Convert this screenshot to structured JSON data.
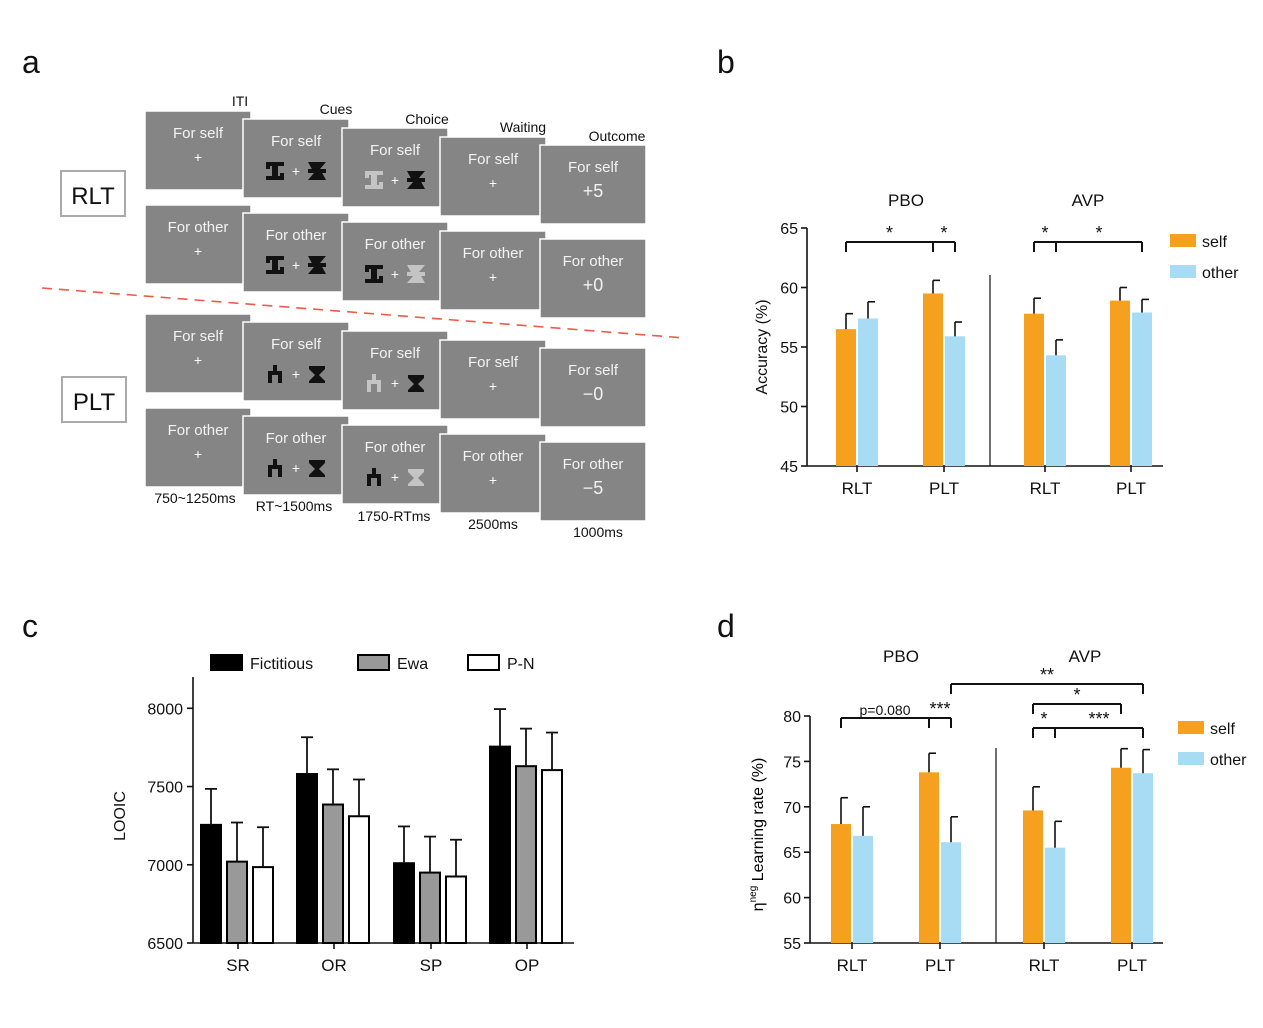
{
  "panels": {
    "a": {
      "letter": "a",
      "stage_labels": [
        "ITI",
        "Cues",
        "Choice",
        "Waiting",
        "Outcome"
      ],
      "timing_labels": [
        "750~1250ms",
        "RT~1500ms",
        "1750-RTms",
        "2500ms",
        "1000ms"
      ],
      "task_labels": [
        "RLT",
        "PLT"
      ],
      "screens": {
        "self_text": "For self",
        "other_text": "For other",
        "fixation": "+",
        "outcomes": {
          "rlt_self": "+5",
          "rlt_other": "+0",
          "plt_self": "−0",
          "plt_other": "−5"
        }
      },
      "colors": {
        "screen": "#858585",
        "text": "#f2f2f2",
        "dashed_line": "#ee5a48"
      }
    },
    "b": {
      "letter": "b"
    },
    "c": {
      "letter": "c"
    },
    "d": {
      "letter": "d"
    }
  },
  "chart_data": [
    {
      "panel": "b",
      "type": "bar",
      "groups": [
        "PBO",
        "AVP"
      ],
      "categories": [
        "RLT",
        "PLT",
        "RLT",
        "PLT"
      ],
      "series": [
        {
          "name": "self",
          "color": "#f5a01e",
          "values": [
            56.5,
            59.5,
            57.8,
            58.9
          ],
          "errors": [
            1.3,
            1.1,
            1.3,
            1.1
          ]
        },
        {
          "name": "other",
          "color": "#a8dcf4",
          "values": [
            57.4,
            55.9,
            54.3,
            57.9
          ],
          "errors": [
            1.4,
            1.2,
            1.3,
            1.1
          ]
        }
      ],
      "ylabel": "Accuracy (%)",
      "ylim": [
        45,
        65
      ],
      "yticks": [
        45,
        50,
        55,
        60,
        65
      ],
      "legend": "right",
      "significance": [
        {
          "bars": [
            "PBO RLT self",
            "PBO PLT self"
          ],
          "label": "*"
        },
        {
          "bars": [
            "PBO PLT self",
            "PBO PLT other"
          ],
          "label": "*"
        },
        {
          "bars": [
            "AVP RLT self",
            "AVP RLT other"
          ],
          "label": "*"
        },
        {
          "bars": [
            "AVP RLT other",
            "AVP PLT other"
          ],
          "label": "*"
        }
      ]
    },
    {
      "panel": "c",
      "type": "bar",
      "categories": [
        "SR",
        "OR",
        "SP",
        "OP"
      ],
      "series": [
        {
          "name": "Fictitious",
          "color": "#000000",
          "values": [
            7255,
            7580,
            7010,
            7755
          ],
          "errors": [
            230,
            235,
            235,
            240
          ]
        },
        {
          "name": "Ewa",
          "color": "#999999",
          "values": [
            7020,
            7385,
            6950,
            7630
          ],
          "errors": [
            250,
            225,
            230,
            240
          ]
        },
        {
          "name": "P-N",
          "color": "#ffffff",
          "values": [
            6985,
            7310,
            6925,
            7605
          ],
          "errors": [
            255,
            235,
            235,
            240
          ]
        }
      ],
      "ylabel": "LOOIC",
      "ylim": [
        6500,
        8200
      ],
      "yticks": [
        6500,
        7000,
        7500,
        8000
      ],
      "legend": "top"
    },
    {
      "panel": "d",
      "type": "bar",
      "groups": [
        "PBO",
        "AVP"
      ],
      "categories": [
        "RLT",
        "PLT",
        "RLT",
        "PLT"
      ],
      "series": [
        {
          "name": "self",
          "color": "#f5a01e",
          "values": [
            68.1,
            73.8,
            69.6,
            74.3
          ],
          "errors": [
            2.9,
            2.1,
            2.6,
            2.1
          ]
        },
        {
          "name": "other",
          "color": "#a8dcf4",
          "values": [
            66.8,
            66.1,
            65.5,
            73.7
          ],
          "errors": [
            3.2,
            2.8,
            2.9,
            2.6
          ]
        }
      ],
      "ylabel_prefix": "η",
      "ylabel_sup": "neg",
      "ylabel_main": "Learning rate (%)",
      "ylim": [
        55,
        80
      ],
      "yticks": [
        55,
        60,
        65,
        70,
        75,
        80
      ],
      "legend": "right",
      "significance": [
        {
          "bars": [
            "PBO RLT self",
            "PBO PLT self"
          ],
          "label": "p=0.080"
        },
        {
          "bars": [
            "PBO PLT self",
            "PBO PLT other"
          ],
          "label": "***"
        },
        {
          "bars": [
            "PBO PLT other",
            "AVP PLT other"
          ],
          "label": "**"
        },
        {
          "bars": [
            "AVP RLT self",
            "AVP PLT self"
          ],
          "label": "*"
        },
        {
          "bars": [
            "AVP RLT self",
            "AVP RLT other"
          ],
          "label": "*"
        },
        {
          "bars": [
            "AVP RLT other",
            "AVP PLT other"
          ],
          "label": "***"
        }
      ]
    }
  ]
}
